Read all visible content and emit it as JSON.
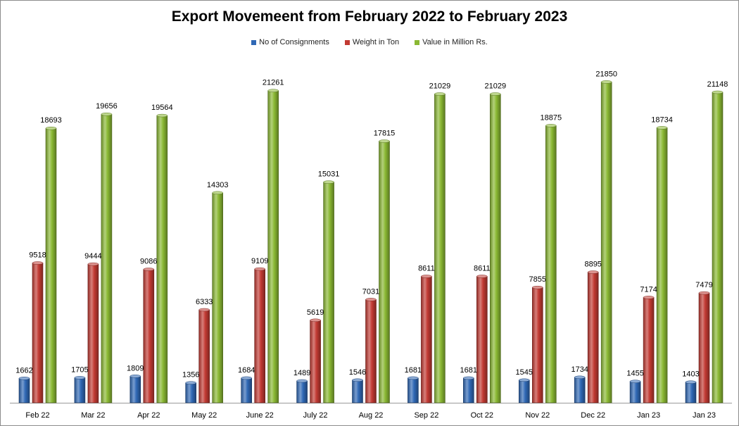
{
  "chart_data": {
    "type": "bar",
    "title": "Export Movemeent from February 2022 to February 2023",
    "categories": [
      "Feb 22",
      "Mar 22",
      "Apr 22",
      "May 22",
      "June 22",
      "July 22",
      "Aug 22",
      "Sep 22",
      "Oct 22",
      "Nov 22",
      "Dec 22",
      "Jan 23",
      "Jan 23"
    ],
    "series": [
      {
        "name": "No of Consignments",
        "color": "#2f68b5",
        "values": [
          1662,
          1705,
          1809,
          1356,
          1684,
          1489,
          1546,
          1681,
          1681,
          1545,
          1734,
          1455,
          1403
        ]
      },
      {
        "name": "Weight in Ton",
        "color": "#c23a33",
        "values": [
          9518,
          9444,
          9086,
          6333,
          9109,
          5619,
          7031,
          8611,
          8611,
          7855,
          8895,
          7174,
          7479
        ]
      },
      {
        "name": "Value in Million Rs.",
        "color": "#8ab833",
        "values": [
          18693,
          19656,
          19564,
          14303,
          21261,
          15031,
          17815,
          21029,
          21029,
          18875,
          21850,
          18734,
          21148
        ]
      }
    ],
    "ylim": [
      0,
      23500
    ],
    "grid": false,
    "legend_position": "top"
  }
}
